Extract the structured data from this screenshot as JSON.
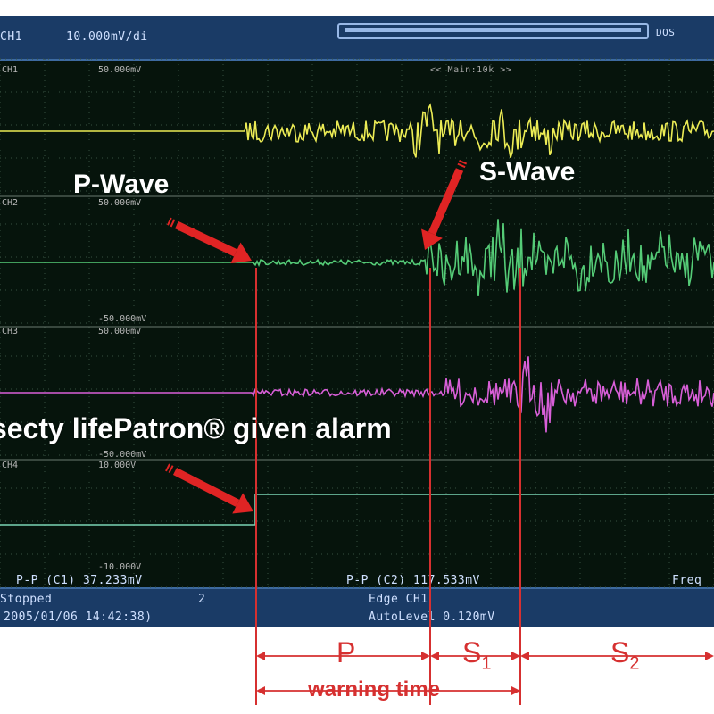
{
  "header": {
    "channel": "CH1",
    "scale": "10.000mV/di",
    "scroll_end": "DOS",
    "timebase": "<< Main:10k >>"
  },
  "channels": [
    {
      "id": "CH1",
      "top": "50.000mV",
      "color": "#ecec55"
    },
    {
      "id": "CH2",
      "top": "50.000mV",
      "bottom": "-50.000mV",
      "color": "#55cc77"
    },
    {
      "id": "CH3",
      "top": "50.000mV",
      "bottom": "-50.000mV",
      "color": "#d85fd8"
    },
    {
      "id": "CH4",
      "top": "10.000V",
      "bottom": "-10.000V",
      "color": "#7ad3b4"
    }
  ],
  "measurements": {
    "pp1": "P-P (C1)   37.233mV",
    "pp2": "P-P (C2)   117.533mV",
    "freq": "Freq"
  },
  "status": {
    "state": "Stopped",
    "count": "2",
    "datetime": "2005/01/06 14:42:38)",
    "trigger": "Edge CH1",
    "auto_level": "AutoLevel 0.120mV"
  },
  "annotations": {
    "p_wave": "P-Wave",
    "s_wave": "S-Wave",
    "alarm": "secty lifePatron® given alarm"
  },
  "intervals": {
    "p": "P",
    "s1": "S",
    "s1_sub": "1",
    "s2": "S",
    "s2_sub": "2",
    "warning": "warning time"
  },
  "colors": {
    "arrow": "#e02424",
    "marker": "#d63030"
  }
}
